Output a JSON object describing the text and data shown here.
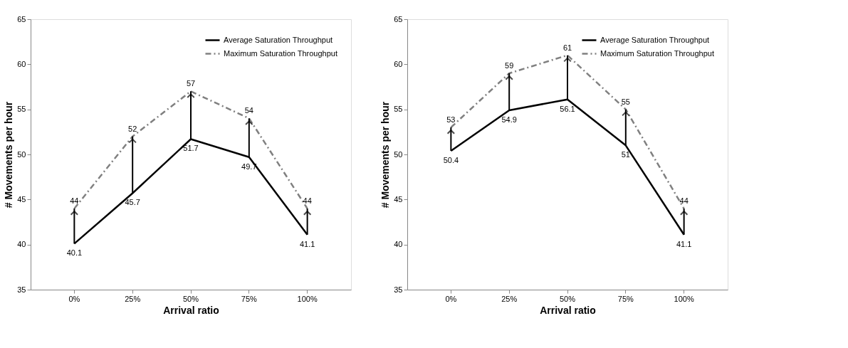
{
  "chart_data": [
    {
      "type": "line",
      "categories": [
        "0%",
        "25%",
        "50%",
        "75%",
        "100%"
      ],
      "xlabel": "Arrival ratio",
      "ylabel": "# Movements per hour",
      "ylim": [
        35,
        65
      ],
      "yticks": [
        35,
        40,
        45,
        50,
        55,
        60,
        65
      ],
      "legend": "top right",
      "data_labels": true,
      "series": [
        {
          "name": "Average Saturation Throughput",
          "color": "#000000",
          "line_style": "solid",
          "values": [
            40.1,
            45.7,
            51.7,
            49.7,
            41.1
          ]
        },
        {
          "name": "Maximum Saturation Throughput",
          "color": "#808080",
          "line_style": "dashed",
          "values": [
            44,
            52,
            57,
            54,
            44
          ]
        }
      ]
    },
    {
      "type": "line",
      "categories": [
        "0%",
        "25%",
        "50%",
        "75%",
        "100%"
      ],
      "xlabel": "Arrival ratio",
      "ylabel": "# Movements per hour",
      "ylim": [
        35,
        65
      ],
      "yticks": [
        35,
        40,
        45,
        50,
        55,
        60,
        65
      ],
      "legend": "top right",
      "data_labels": true,
      "series": [
        {
          "name": "Average Saturation Throughput",
          "color": "#000000",
          "line_style": "solid",
          "values": [
            50.4,
            54.9,
            56.1,
            51,
            41.1
          ]
        },
        {
          "name": "Maximum Saturation Throughput",
          "color": "#808080",
          "line_style": "dashed",
          "values": [
            53,
            59,
            61,
            55,
            44
          ]
        }
      ]
    }
  ]
}
